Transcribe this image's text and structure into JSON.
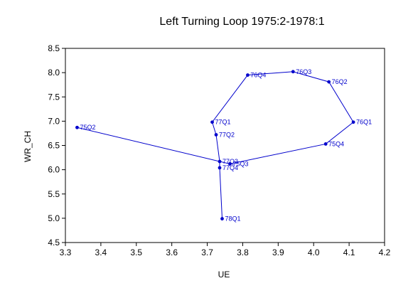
{
  "chart_data": {
    "type": "line",
    "title": "Left Turning Loop 1975:2-1978:1",
    "xlabel": "UE",
    "ylabel": "WR_CH",
    "xlim": [
      3.3,
      4.2
    ],
    "ylim": [
      4.5,
      8.5
    ],
    "x_ticks": [
      "3.3",
      "3.4",
      "3.5",
      "3.6",
      "3.7",
      "3.8",
      "3.9",
      "4.0",
      "4.1",
      "4.2"
    ],
    "y_ticks": [
      "4.5",
      "5.0",
      "5.5",
      "6.0",
      "6.5",
      "7.0",
      "7.5",
      "8.0",
      "8.5"
    ],
    "grid": false,
    "legend": "none",
    "colors": {
      "series": "#0000cc",
      "axes": "#000000"
    },
    "series": [
      {
        "points": [
          {
            "label": "75Q2",
            "x": 3.333,
            "y": 6.87
          },
          {
            "label": "75Q3",
            "x": 3.764,
            "y": 6.12
          },
          {
            "label": "75Q4",
            "x": 4.034,
            "y": 6.53
          },
          {
            "label": "76Q1",
            "x": 4.112,
            "y": 6.98
          },
          {
            "label": "76Q2",
            "x": 4.043,
            "y": 7.81
          },
          {
            "label": "76Q3",
            "x": 3.942,
            "y": 8.02
          },
          {
            "label": "76Q4",
            "x": 3.814,
            "y": 7.95
          },
          {
            "label": "77Q1",
            "x": 3.714,
            "y": 6.98
          },
          {
            "label": "77Q2",
            "x": 3.725,
            "y": 6.72
          },
          {
            "label": "77Q3",
            "x": 3.735,
            "y": 6.17
          },
          {
            "label": "77Q4",
            "x": 3.735,
            "y": 6.04
          },
          {
            "label": "78Q1",
            "x": 3.742,
            "y": 4.99
          }
        ]
      }
    ]
  }
}
